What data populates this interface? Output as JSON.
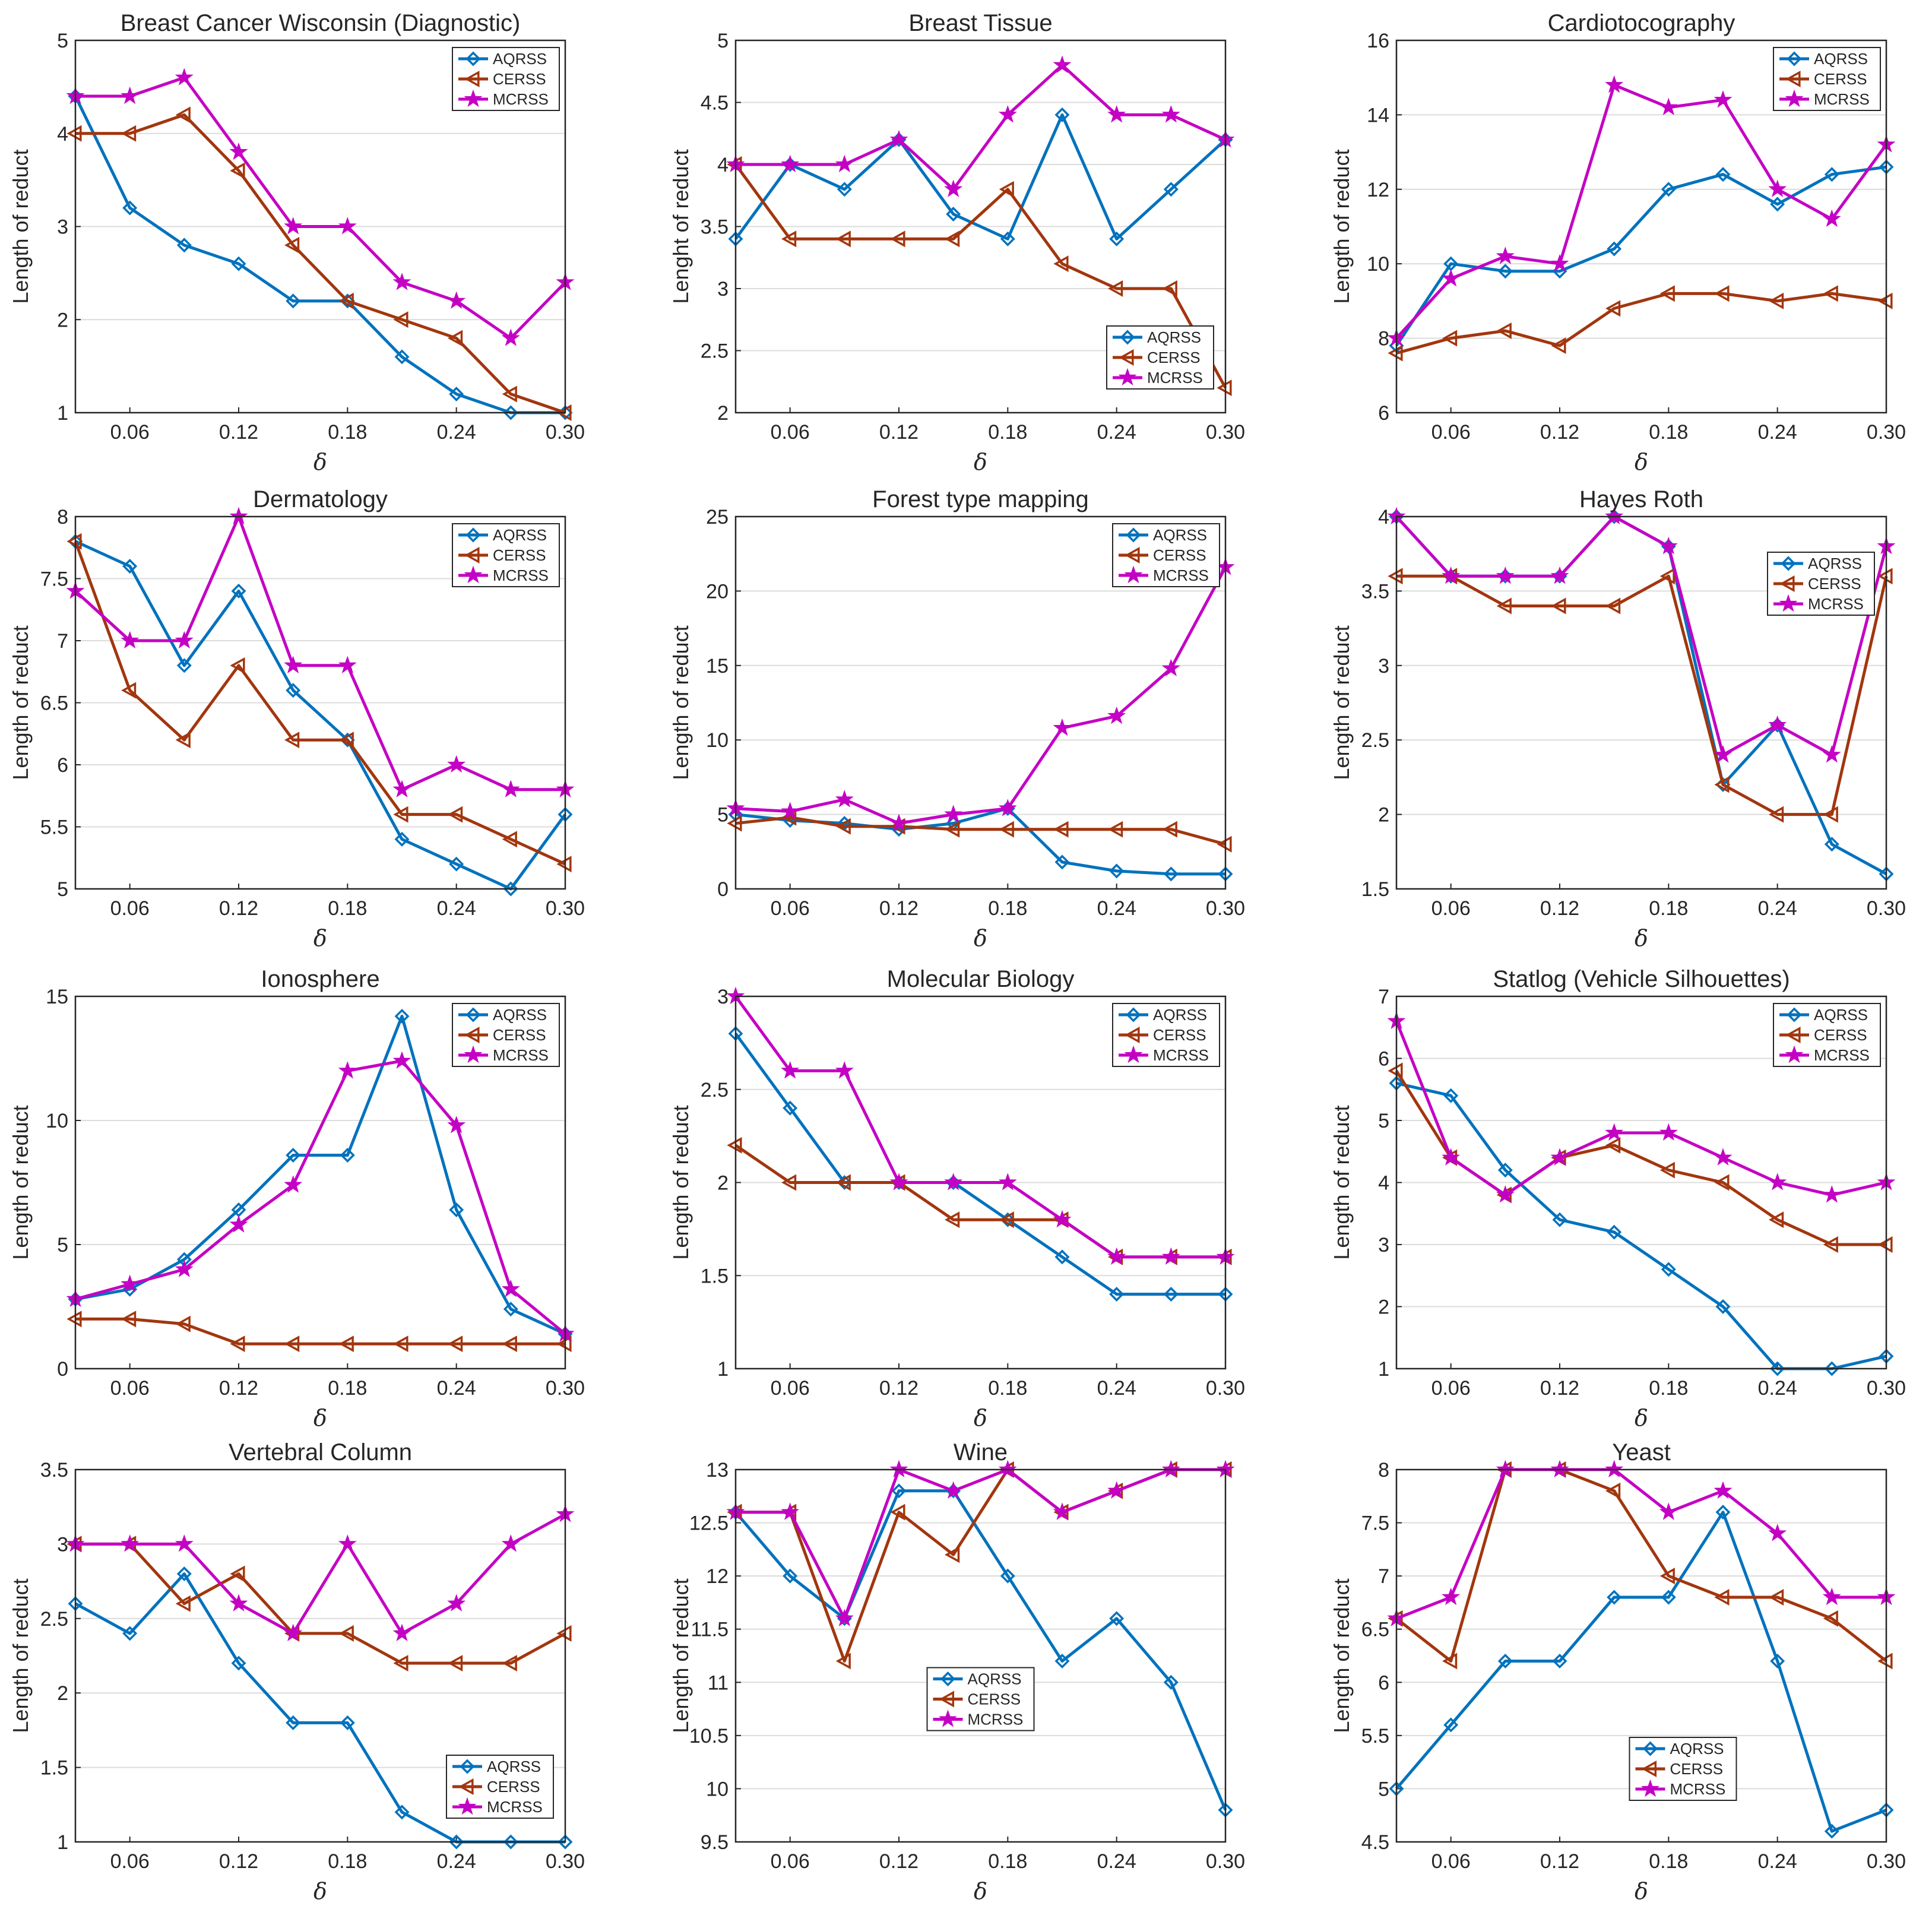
{
  "legend_labels": [
    "AQRSS",
    "CERSS",
    "MCRSS"
  ],
  "colors": {
    "AQRSS": "#0072bd",
    "CERSS": "#a2360e",
    "MCRSS": "#c400c4"
  },
  "chart_data": [
    {
      "type": "line",
      "title": "Breast Cancer Wisconsin (Diagnostic)",
      "xlabel": "δ",
      "ylabel": "Length of reduct",
      "x": [
        0.03,
        0.06,
        0.09,
        0.12,
        0.15,
        0.18,
        0.21,
        0.24,
        0.27,
        0.3
      ],
      "xticks": [
        "0.06",
        "0.12",
        "0.18",
        "0.24",
        "0.30"
      ],
      "xlim": [
        0.03,
        0.3
      ],
      "ylim": [
        1,
        5
      ],
      "yticks": [
        "1",
        "2",
        "3",
        "4",
        "5"
      ],
      "grid": true,
      "legend_position": "top-right",
      "series": [
        {
          "name": "AQRSS",
          "values": [
            4.4,
            3.2,
            2.8,
            2.6,
            2.2,
            2.2,
            1.6,
            1.2,
            1.0,
            1.0
          ]
        },
        {
          "name": "CERSS",
          "values": [
            4.0,
            4.0,
            4.2,
            3.6,
            2.8,
            2.2,
            2.0,
            1.8,
            1.2,
            1.0
          ]
        },
        {
          "name": "MCRSS",
          "values": [
            4.4,
            4.4,
            4.6,
            3.8,
            3.0,
            3.0,
            2.4,
            2.2,
            1.8,
            2.4
          ]
        }
      ]
    },
    {
      "type": "line",
      "title": "Breast Tissue",
      "xlabel": "δ",
      "ylabel": "Lenght of reduct",
      "x": [
        0.03,
        0.06,
        0.09,
        0.12,
        0.15,
        0.18,
        0.21,
        0.24,
        0.27,
        0.3
      ],
      "xticks": [
        "0.06",
        "0.12",
        "0.18",
        "0.24",
        "0.30"
      ],
      "xlim": [
        0.03,
        0.3
      ],
      "ylim": [
        2,
        5
      ],
      "yticks": [
        "2",
        "2.5",
        "3",
        "3.5",
        "4",
        "4.5",
        "5"
      ],
      "grid": true,
      "legend_position": "bottom-right",
      "series": [
        {
          "name": "AQRSS",
          "values": [
            3.4,
            4.0,
            3.8,
            4.2,
            3.6,
            3.4,
            4.4,
            3.4,
            3.8,
            4.2
          ]
        },
        {
          "name": "CERSS",
          "values": [
            4.0,
            3.4,
            3.4,
            3.4,
            3.4,
            3.8,
            3.2,
            3.0,
            3.0,
            2.2
          ]
        },
        {
          "name": "MCRSS",
          "values": [
            4.0,
            4.0,
            4.0,
            4.2,
            3.8,
            4.4,
            4.8,
            4.4,
            4.4,
            4.2
          ]
        }
      ]
    },
    {
      "type": "line",
      "title": "Cardiotocography",
      "xlabel": "δ",
      "ylabel": "Length of reduct",
      "x": [
        0.03,
        0.06,
        0.09,
        0.12,
        0.15,
        0.18,
        0.21,
        0.24,
        0.27,
        0.3
      ],
      "xticks": [
        "0.06",
        "0.12",
        "0.18",
        "0.24",
        "0.30"
      ],
      "xlim": [
        0.03,
        0.3
      ],
      "ylim": [
        6,
        16
      ],
      "yticks": [
        "6",
        "8",
        "10",
        "12",
        "14",
        "16"
      ],
      "grid": true,
      "legend_position": "top-right",
      "series": [
        {
          "name": "AQRSS",
          "values": [
            7.8,
            10.0,
            9.8,
            9.8,
            10.4,
            12.0,
            12.4,
            11.6,
            12.4,
            12.6
          ]
        },
        {
          "name": "CERSS",
          "values": [
            7.6,
            8.0,
            8.2,
            7.8,
            8.8,
            9.2,
            9.2,
            9.0,
            9.2,
            9.0
          ]
        },
        {
          "name": "MCRSS",
          "values": [
            8.0,
            9.6,
            10.2,
            10.0,
            14.8,
            14.2,
            14.4,
            12.0,
            11.2,
            13.2
          ]
        }
      ]
    },
    {
      "type": "line",
      "title": "Dermatology",
      "xlabel": "δ",
      "ylabel": "Length of reduct",
      "x": [
        0.03,
        0.06,
        0.09,
        0.12,
        0.15,
        0.18,
        0.21,
        0.24,
        0.27,
        0.3
      ],
      "xticks": [
        "0.06",
        "0.12",
        "0.18",
        "0.24",
        "0.30"
      ],
      "xlim": [
        0.03,
        0.3
      ],
      "ylim": [
        5,
        8
      ],
      "yticks": [
        "5",
        "5.5",
        "6",
        "6.5",
        "7",
        "7.5",
        "8"
      ],
      "grid": true,
      "legend_position": "top-right",
      "series": [
        {
          "name": "AQRSS",
          "values": [
            7.8,
            7.6,
            6.8,
            7.4,
            6.6,
            6.2,
            5.4,
            5.2,
            5.0,
            5.6
          ]
        },
        {
          "name": "CERSS",
          "values": [
            7.8,
            6.6,
            6.2,
            6.8,
            6.2,
            6.2,
            5.6,
            5.6,
            5.4,
            5.2
          ]
        },
        {
          "name": "MCRSS",
          "values": [
            7.4,
            7.0,
            7.0,
            8.0,
            6.8,
            6.8,
            5.8,
            6.0,
            5.8,
            5.8
          ]
        }
      ]
    },
    {
      "type": "line",
      "title": "Forest type mapping",
      "xlabel": "δ",
      "ylabel": "Length of reduct",
      "x": [
        0.03,
        0.06,
        0.09,
        0.12,
        0.15,
        0.18,
        0.21,
        0.24,
        0.27,
        0.3
      ],
      "xticks": [
        "0.06",
        "0.12",
        "0.18",
        "0.24",
        "0.30"
      ],
      "xlim": [
        0.03,
        0.3
      ],
      "ylim": [
        0,
        25
      ],
      "yticks": [
        "0",
        "5",
        "10",
        "15",
        "20",
        "25"
      ],
      "grid": true,
      "legend_position": "top-right",
      "series": [
        {
          "name": "AQRSS",
          "values": [
            5.0,
            4.6,
            4.4,
            4.0,
            4.4,
            5.4,
            1.8,
            1.2,
            1.0,
            1.0
          ]
        },
        {
          "name": "CERSS",
          "values": [
            4.4,
            4.8,
            4.2,
            4.2,
            4.0,
            4.0,
            4.0,
            4.0,
            4.0,
            3.0
          ]
        },
        {
          "name": "MCRSS",
          "values": [
            5.4,
            5.2,
            6.0,
            4.4,
            5.0,
            5.4,
            10.8,
            11.6,
            14.8,
            21.6
          ]
        }
      ]
    },
    {
      "type": "line",
      "title": "Hayes Roth",
      "xlabel": "δ",
      "ylabel": "Length of reduct",
      "x": [
        0.03,
        0.06,
        0.09,
        0.12,
        0.15,
        0.18,
        0.21,
        0.24,
        0.27,
        0.3
      ],
      "xticks": [
        "0.06",
        "0.12",
        "0.18",
        "0.24",
        "0.30"
      ],
      "xlim": [
        0.03,
        0.3
      ],
      "ylim": [
        1.5,
        4
      ],
      "yticks": [
        "1.5",
        "2",
        "2.5",
        "3",
        "3.5",
        "4"
      ],
      "grid": true,
      "legend_position": "upper-right",
      "series": [
        {
          "name": "AQRSS",
          "values": [
            4.0,
            3.6,
            3.6,
            3.6,
            4.0,
            3.8,
            2.2,
            2.6,
            1.8,
            1.6
          ]
        },
        {
          "name": "CERSS",
          "values": [
            3.6,
            3.6,
            3.4,
            3.4,
            3.4,
            3.6,
            2.2,
            2.0,
            2.0,
            3.6
          ]
        },
        {
          "name": "MCRSS",
          "values": [
            4.0,
            3.6,
            3.6,
            3.6,
            4.0,
            3.8,
            2.4,
            2.6,
            2.4,
            3.8
          ]
        }
      ]
    },
    {
      "type": "line",
      "title": "Ionosphere",
      "xlabel": "δ",
      "ylabel": "Length of reduct",
      "x": [
        0.03,
        0.06,
        0.09,
        0.12,
        0.15,
        0.18,
        0.21,
        0.24,
        0.27,
        0.3
      ],
      "xticks": [
        "0.06",
        "0.12",
        "0.18",
        "0.24",
        "0.30"
      ],
      "xlim": [
        0.03,
        0.3
      ],
      "ylim": [
        0,
        15
      ],
      "yticks": [
        "0",
        "5",
        "10",
        "15"
      ],
      "grid": true,
      "legend_position": "top-right",
      "series": [
        {
          "name": "AQRSS",
          "values": [
            2.8,
            3.2,
            4.4,
            6.4,
            8.6,
            8.6,
            14.2,
            6.4,
            2.4,
            1.4
          ]
        },
        {
          "name": "CERSS",
          "values": [
            2.0,
            2.0,
            1.8,
            1.0,
            1.0,
            1.0,
            1.0,
            1.0,
            1.0,
            1.0
          ]
        },
        {
          "name": "MCRSS",
          "values": [
            2.8,
            3.4,
            4.0,
            5.8,
            7.4,
            12.0,
            12.4,
            9.8,
            3.2,
            1.4
          ]
        }
      ]
    },
    {
      "type": "line",
      "title": "Molecular Biology",
      "xlabel": "δ",
      "ylabel": "Length of reduct",
      "x": [
        0.03,
        0.06,
        0.09,
        0.12,
        0.15,
        0.18,
        0.21,
        0.24,
        0.27,
        0.3
      ],
      "xticks": [
        "0.06",
        "0.12",
        "0.18",
        "0.24",
        "0.30"
      ],
      "xlim": [
        0.03,
        0.3
      ],
      "ylim": [
        1,
        3
      ],
      "yticks": [
        "1",
        "1.5",
        "2",
        "2.5",
        "3"
      ],
      "grid": true,
      "legend_position": "top-right",
      "series": [
        {
          "name": "AQRSS",
          "values": [
            2.8,
            2.4,
            2.0,
            2.0,
            2.0,
            1.8,
            1.6,
            1.4,
            1.4,
            1.4
          ]
        },
        {
          "name": "CERSS",
          "values": [
            2.2,
            2.0,
            2.0,
            2.0,
            1.8,
            1.8,
            1.8,
            1.6,
            1.6,
            1.6
          ]
        },
        {
          "name": "MCRSS",
          "values": [
            3.0,
            2.6,
            2.6,
            2.0,
            2.0,
            2.0,
            1.8,
            1.6,
            1.6,
            1.6
          ]
        }
      ]
    },
    {
      "type": "line",
      "title": "Statlog (Vehicle Silhouettes)",
      "xlabel": "δ",
      "ylabel": "Length of reduct",
      "x": [
        0.03,
        0.06,
        0.09,
        0.12,
        0.15,
        0.18,
        0.21,
        0.24,
        0.27,
        0.3
      ],
      "xticks": [
        "0.06",
        "0.12",
        "0.18",
        "0.24",
        "0.30"
      ],
      "xlim": [
        0.03,
        0.3
      ],
      "ylim": [
        1,
        7
      ],
      "yticks": [
        "1",
        "2",
        "3",
        "4",
        "5",
        "6",
        "7"
      ],
      "grid": true,
      "legend_position": "top-right",
      "series": [
        {
          "name": "AQRSS",
          "values": [
            5.6,
            5.4,
            4.2,
            3.4,
            3.2,
            2.6,
            2.0,
            1.0,
            1.0,
            1.2
          ]
        },
        {
          "name": "CERSS",
          "values": [
            5.8,
            4.4,
            3.8,
            4.4,
            4.6,
            4.2,
            4.0,
            3.4,
            3.0,
            3.0
          ]
        },
        {
          "name": "MCRSS",
          "values": [
            6.6,
            4.4,
            3.8,
            4.4,
            4.8,
            4.8,
            4.4,
            4.0,
            3.8,
            4.0
          ]
        }
      ]
    },
    {
      "type": "line",
      "title": "Vertebral Column",
      "xlabel": "δ",
      "ylabel": "Length of reduct",
      "x": [
        0.03,
        0.06,
        0.09,
        0.12,
        0.15,
        0.18,
        0.21,
        0.24,
        0.27,
        0.3
      ],
      "xticks": [
        "0.06",
        "0.12",
        "0.18",
        "0.24",
        "0.30"
      ],
      "xlim": [
        0.03,
        0.3
      ],
      "ylim": [
        1,
        3.5
      ],
      "yticks": [
        "1",
        "1.5",
        "2",
        "2.5",
        "3",
        "3.5"
      ],
      "grid": true,
      "legend_position": "bottom-right",
      "series": [
        {
          "name": "AQRSS",
          "values": [
            2.6,
            2.4,
            2.8,
            2.2,
            1.8,
            1.8,
            1.2,
            1.0,
            1.0,
            1.0
          ]
        },
        {
          "name": "CERSS",
          "values": [
            3.0,
            3.0,
            2.6,
            2.8,
            2.4,
            2.4,
            2.2,
            2.2,
            2.2,
            2.4
          ]
        },
        {
          "name": "MCRSS",
          "values": [
            3.0,
            3.0,
            3.0,
            2.6,
            2.4,
            3.0,
            2.4,
            2.6,
            3.0,
            3.2
          ]
        }
      ]
    },
    {
      "type": "line",
      "title": "Wine",
      "xlabel": "δ",
      "ylabel": "Length of reduct",
      "x": [
        0.03,
        0.06,
        0.09,
        0.12,
        0.15,
        0.18,
        0.21,
        0.24,
        0.27,
        0.3
      ],
      "xticks": [
        "0.06",
        "0.12",
        "0.18",
        "0.24",
        "0.30"
      ],
      "xlim": [
        0.03,
        0.3
      ],
      "ylim": [
        9.5,
        13
      ],
      "yticks": [
        "9.5",
        "10",
        "10.5",
        "11",
        "11.5",
        "12",
        "12.5",
        "13"
      ],
      "grid": true,
      "legend_position": "center",
      "series": [
        {
          "name": "AQRSS",
          "values": [
            12.6,
            12.0,
            11.6,
            12.8,
            12.8,
            12.0,
            11.2,
            11.6,
            11.0,
            9.8
          ]
        },
        {
          "name": "CERSS",
          "values": [
            12.6,
            12.6,
            11.2,
            12.6,
            12.2,
            13.0,
            12.6,
            12.8,
            13.0,
            13.0
          ]
        },
        {
          "name": "MCRSS",
          "values": [
            12.6,
            12.6,
            11.6,
            13.0,
            12.8,
            13.0,
            12.6,
            12.8,
            13.0,
            13.0
          ]
        }
      ]
    },
    {
      "type": "line",
      "title": "Yeast",
      "xlabel": "δ",
      "ylabel": "Length of reduct",
      "x": [
        0.03,
        0.06,
        0.09,
        0.12,
        0.15,
        0.18,
        0.21,
        0.24,
        0.27,
        0.3
      ],
      "xticks": [
        "0.06",
        "0.12",
        "0.18",
        "0.24",
        "0.30"
      ],
      "xlim": [
        0.03,
        0.3
      ],
      "ylim": [
        4.5,
        8
      ],
      "yticks": [
        "4.5",
        "5",
        "5.5",
        "6",
        "6.5",
        "7",
        "7.5",
        "8"
      ],
      "grid": true,
      "legend_position": "bottom-center",
      "series": [
        {
          "name": "AQRSS",
          "values": [
            5.0,
            5.6,
            6.2,
            6.2,
            6.8,
            6.8,
            7.6,
            6.2,
            4.6,
            4.8
          ]
        },
        {
          "name": "CERSS",
          "values": [
            6.6,
            6.2,
            8.0,
            8.0,
            7.8,
            7.0,
            6.8,
            6.8,
            6.6,
            6.2
          ]
        },
        {
          "name": "MCRSS",
          "values": [
            6.6,
            6.8,
            8.0,
            8.0,
            8.0,
            7.6,
            7.8,
            7.4,
            6.8,
            6.8
          ]
        }
      ]
    }
  ]
}
